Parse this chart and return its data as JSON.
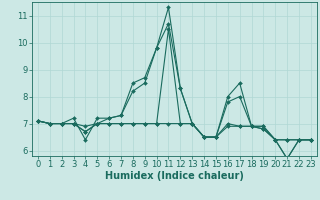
{
  "xlabel": "Humidex (Indice chaleur)",
  "xlim": [
    -0.5,
    23.5
  ],
  "ylim": [
    5.8,
    11.5
  ],
  "yticks": [
    6,
    7,
    8,
    9,
    10,
    11
  ],
  "xticks": [
    0,
    1,
    2,
    3,
    4,
    5,
    6,
    7,
    8,
    9,
    10,
    11,
    12,
    13,
    14,
    15,
    16,
    17,
    18,
    19,
    20,
    21,
    22,
    23
  ],
  "bg_color": "#cce8e5",
  "line_color": "#1a6b5e",
  "grid_color": "#b0d8d4",
  "lines": [
    [
      7.1,
      7.0,
      7.0,
      7.2,
      6.4,
      7.2,
      7.2,
      7.3,
      8.5,
      8.7,
      9.8,
      11.3,
      8.3,
      7.0,
      6.5,
      6.5,
      8.0,
      8.5,
      6.9,
      6.9,
      6.4,
      5.7,
      6.4,
      6.4
    ],
    [
      7.1,
      7.0,
      7.0,
      7.0,
      6.9,
      7.0,
      7.0,
      7.0,
      7.0,
      7.0,
      7.0,
      10.5,
      7.0,
      7.0,
      6.5,
      6.5,
      7.0,
      6.9,
      6.9,
      6.8,
      6.4,
      6.4,
      6.4,
      6.4
    ],
    [
      7.1,
      7.0,
      7.0,
      7.0,
      6.7,
      7.0,
      7.2,
      7.3,
      8.2,
      8.5,
      9.8,
      10.7,
      8.3,
      7.0,
      6.5,
      6.5,
      7.8,
      8.0,
      6.9,
      6.9,
      6.4,
      5.7,
      6.4,
      6.4
    ],
    [
      7.1,
      7.0,
      7.0,
      7.0,
      6.7,
      7.0,
      7.0,
      7.0,
      7.0,
      7.0,
      7.0,
      7.0,
      7.0,
      7.0,
      6.5,
      6.5,
      6.9,
      6.9,
      6.9,
      6.8,
      6.4,
      6.4,
      6.4,
      6.4
    ]
  ],
  "tick_fontsize": 6,
  "xlabel_fontsize": 7,
  "marker": "D",
  "marker_size": 2.0,
  "linewidth": 0.8
}
